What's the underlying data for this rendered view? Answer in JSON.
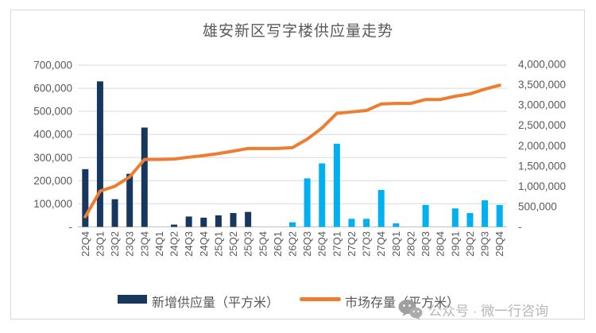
{
  "title": "雄安新区写字楼供应量走势",
  "legend": [
    {
      "label": "新增供应量（平方米）",
      "type": "bar",
      "color": "#17375E"
    },
    {
      "label": "市场存量（平方米）",
      "type": "line",
      "color": "#ED7D31"
    }
  ],
  "watermark": {
    "icon": "wechat-icon",
    "text": "公众号 · 微一行咨询"
  },
  "colors": {
    "bar_dark": "#17375E",
    "bar_light": "#00B0F0",
    "line": "#ED7D31",
    "grid": "#D9D9D9",
    "axis_line": "#BFBFBF",
    "text": "#595959",
    "watermark": "#B3B3B3",
    "border": "#D9D9D9"
  },
  "chart_data": {
    "type": "combo",
    "title": "雄安新区写字楼供应量走势",
    "categories": [
      "22Q4",
      "23Q1",
      "23Q2",
      "23Q3",
      "23Q4",
      "24Q1",
      "24Q2",
      "24Q3",
      "24Q4",
      "25Q1",
      "25Q2",
      "25Q3",
      "25Q4",
      "26Q1",
      "26Q2",
      "26Q3",
      "26Q4",
      "27Q1",
      "27Q2",
      "27Q3",
      "27Q4",
      "28Q1",
      "28Q2",
      "28Q3",
      "28Q4",
      "29Q1",
      "29Q2",
      "29Q3",
      "29Q4"
    ],
    "series": [
      {
        "name": "新增供应量（平方米）",
        "type": "bar",
        "axis": "left",
        "color_early": "#17375E",
        "color_late": "#00B0F0",
        "color_change_index": 14,
        "values": [
          250000,
          630000,
          120000,
          230000,
          430000,
          0,
          10000,
          45000,
          40000,
          50000,
          60000,
          65000,
          0,
          0,
          20000,
          210000,
          275000,
          360000,
          35000,
          35000,
          160000,
          15000,
          0,
          95000,
          0,
          80000,
          60000,
          115000,
          95000
        ]
      },
      {
        "name": "市场存量（平方米）",
        "type": "line",
        "axis": "right",
        "color": "#ED7D31",
        "values": [
          250000,
          880000,
          1000000,
          1230000,
          1660000,
          1660000,
          1670000,
          1715000,
          1755000,
          1805000,
          1865000,
          1930000,
          1930000,
          1930000,
          1950000,
          2160000,
          2435000,
          2795000,
          2830000,
          2865000,
          3025000,
          3040000,
          3040000,
          3135000,
          3135000,
          3215000,
          3275000,
          3390000,
          3485000
        ]
      }
    ],
    "left_axis": {
      "min": 0,
      "max": 700000,
      "ticks": [
        "-",
        "100,000",
        "200,000",
        "300,000",
        "400,000",
        "500,000",
        "600,000",
        "700,000"
      ]
    },
    "right_axis": {
      "min": 0,
      "max": 4000000,
      "ticks": [
        "-",
        "500,000",
        "1,000,000",
        "1,500,000",
        "2,000,000",
        "2,500,000",
        "3,000,000",
        "3,500,000",
        "4,000,000"
      ]
    },
    "grid": true,
    "legend_position": "bottom"
  }
}
